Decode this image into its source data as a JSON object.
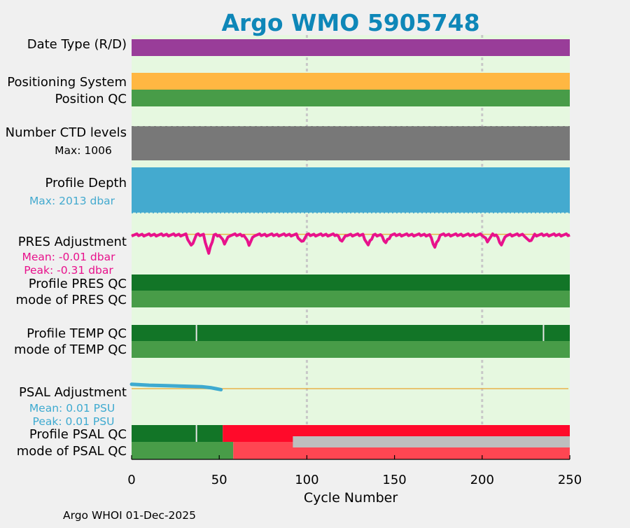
{
  "colors": {
    "page_bg": "#f0f0f0",
    "plot_bg": "#e6f8e0",
    "title": "#0e87b8",
    "grid": "#c8c8c8",
    "date_type_D": "#993d99",
    "positioning_gps": "#ffb742",
    "qc_good": "#489c48",
    "profile_qc_A": "#127527",
    "ctd_levels": "#787878",
    "profile_depth": "#44aacf",
    "pres_adjustment": "#e8128c",
    "zero_line": "#e8b24a",
    "psal_adjustment": "#3eaad0",
    "profile_qc_F": "#ff0a2a",
    "qc_bad": "#ff4652",
    "qc_missing": "#bebebe",
    "text": "#000000"
  },
  "chart_data": {
    "type": "bar",
    "title": "Argo WMO 5905748",
    "xlabel": "Cycle Number",
    "xlim": [
      0,
      250
    ],
    "xticks": [
      0,
      50,
      100,
      150,
      200,
      250
    ],
    "grid_x": [
      100,
      200
    ],
    "footer": "Argo WHOI 01-Dec-2025",
    "rows": {
      "date_type": {
        "label": "Date Type (R/D)",
        "value": "D",
        "segments": [
          {
            "from": 0,
            "to": 250,
            "value": "D"
          }
        ]
      },
      "positioning_system": {
        "label": "Positioning System",
        "segments": [
          {
            "from": 0,
            "to": 250,
            "value": "GPS"
          }
        ]
      },
      "position_qc": {
        "label": "Position QC",
        "segments": [
          {
            "from": 0,
            "to": 250,
            "value": 1
          }
        ]
      },
      "ctd_levels": {
        "label": "Number CTD levels",
        "max_text": "Max: 1006",
        "max": 1006,
        "typical": 1000
      },
      "profile_depth": {
        "label": "Profile Depth",
        "max_text": "Max: 2013 dbar",
        "max": 2013,
        "typical": 2000
      },
      "pres_adjustment": {
        "label": "PRES Adjustment",
        "mean_text": "Mean: -0.01 dbar",
        "peak_text": "Peak: -0.31 dbar",
        "mean": -0.01,
        "peak": -0.31,
        "ylim": [
          -0.6,
          0.05
        ],
        "dips": [
          {
            "x": 34,
            "value": -0.18
          },
          {
            "x": 44,
            "value": -0.3
          },
          {
            "x": 53,
            "value": -0.14
          },
          {
            "x": 67,
            "value": -0.16
          },
          {
            "x": 97,
            "value": -0.12
          },
          {
            "x": 120,
            "value": -0.1
          },
          {
            "x": 135,
            "value": -0.17
          },
          {
            "x": 145,
            "value": -0.13
          },
          {
            "x": 173,
            "value": -0.2
          },
          {
            "x": 203,
            "value": -0.1
          },
          {
            "x": 211,
            "value": -0.16
          },
          {
            "x": 227,
            "value": -0.12
          }
        ]
      },
      "profile_pres_qc": {
        "label": "Profile PRES QC",
        "segments": [
          {
            "from": 0,
            "to": 250,
            "value": "A"
          }
        ]
      },
      "mode_pres_qc": {
        "label": "mode of PRES QC",
        "segments": [
          {
            "from": 0,
            "to": 250,
            "value": 1
          }
        ]
      },
      "profile_temp_qc": {
        "label": "Profile TEMP QC",
        "segments": [
          {
            "from": 0,
            "to": 250,
            "value": "A"
          }
        ],
        "gaps": [
          37,
          235
        ]
      },
      "mode_temp_qc": {
        "label": "mode of TEMP QC",
        "segments": [
          {
            "from": 0,
            "to": 250,
            "value": 1
          }
        ]
      },
      "psal_adjustment": {
        "label": "PSAL Adjustment",
        "mean_text": "Mean: 0.01 PSU",
        "peak_text": "Peak: 0.01 PSU",
        "mean": 0.01,
        "peak": 0.01,
        "ylim": [
          -0.05,
          0.01
        ],
        "x": [
          0,
          10,
          20,
          30,
          40,
          45,
          48,
          51
        ],
        "values": [
          0.009,
          0.007,
          0.006,
          0.005,
          0.004,
          0.002,
          0.0,
          -0.002
        ]
      },
      "profile_psal_qc": {
        "label": "Profile PSAL QC",
        "segments": [
          {
            "from": 0,
            "to": 52,
            "value": "A"
          },
          {
            "from": 52,
            "to": 250,
            "value": "F"
          }
        ],
        "gaps": [
          37
        ]
      },
      "mode_psal_qc": {
        "label": "mode of PSAL QC",
        "segments": [
          {
            "from": 0,
            "to": 58,
            "value": 1
          },
          {
            "from": 58,
            "to": 250,
            "value": 4
          }
        ],
        "missing": [
          {
            "from": 92,
            "to": 250
          }
        ]
      }
    }
  }
}
